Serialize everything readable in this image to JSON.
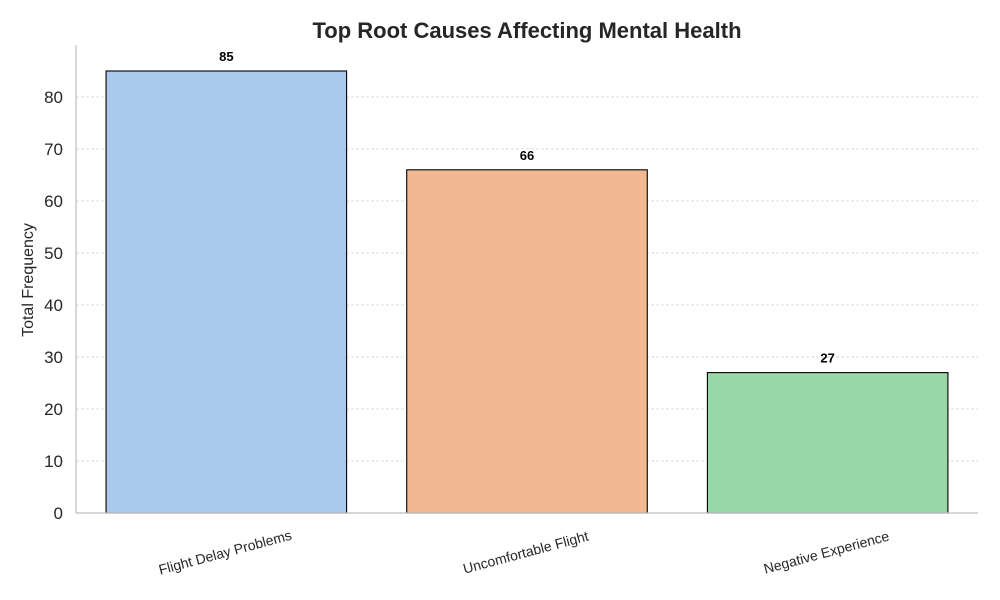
{
  "chart_data": {
    "type": "bar",
    "title": "Top Root Causes Affecting Mental Health",
    "xlabel": "",
    "ylabel": "Total Frequency",
    "categories": [
      "Flight Delay Problems",
      "Uncomfortable Flight",
      "Negative Experience"
    ],
    "values": [
      85,
      66,
      27
    ],
    "value_labels": [
      "85",
      "66",
      "27"
    ],
    "colors": [
      "#abc9ec",
      "#f0b893",
      "#98d8a7"
    ],
    "ylim": [
      0,
      90
    ],
    "yticks": [
      0,
      10,
      20,
      30,
      40,
      50,
      60,
      70,
      80
    ],
    "grid": "horizontal-dashed",
    "legend": "none"
  }
}
